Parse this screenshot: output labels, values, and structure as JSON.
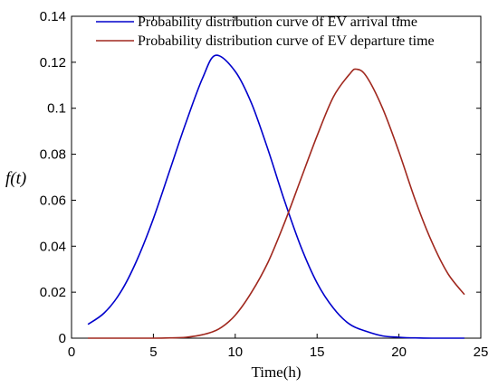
{
  "chart_data": {
    "type": "line",
    "title": "",
    "xlabel": "Time(h)",
    "ylabel": "f(t)",
    "xlim": [
      0,
      25
    ],
    "ylim": [
      0,
      0.14
    ],
    "xticks": [
      0,
      5,
      10,
      15,
      20,
      25
    ],
    "yticks": [
      0,
      0.02,
      0.04,
      0.06,
      0.08,
      0.1,
      0.12,
      0.14
    ],
    "xtick_labels": [
      "0",
      "5",
      "10",
      "15",
      "20",
      "25"
    ],
    "ytick_labels": [
      "0",
      "0.02",
      "0.04",
      "0.06",
      "0.08",
      "0.1",
      "0.12",
      "0.14"
    ],
    "grid": false,
    "legend_position": "top-right",
    "series": [
      {
        "name": "Probability distribution curve of EV arrival time",
        "color": "#0000cc",
        "x": [
          1,
          2,
          3,
          4,
          5,
          6,
          7,
          8,
          8.8,
          10,
          11,
          12,
          13,
          14,
          15,
          16,
          17,
          18,
          19,
          20,
          21,
          22,
          23,
          24
        ],
        "y": [
          0.006,
          0.011,
          0.02,
          0.034,
          0.052,
          0.073,
          0.094,
          0.113,
          0.123,
          0.116,
          0.102,
          0.082,
          0.06,
          0.04,
          0.024,
          0.013,
          0.006,
          0.003,
          0.001,
          0.0004,
          0.0001,
          0.0,
          0.0,
          0.0
        ]
      },
      {
        "name": "Probability distribution curve of EV departure time",
        "color": "#a0281e",
        "x": [
          1,
          2,
          3,
          4,
          5,
          6,
          7,
          8,
          9,
          10,
          11,
          12,
          13,
          14,
          15,
          16,
          17,
          17.4,
          18,
          19,
          20,
          21,
          22,
          23,
          24
        ],
        "y": [
          0.0,
          0.0,
          0.0,
          0.0,
          0.0,
          0.0001,
          0.0004,
          0.0015,
          0.004,
          0.01,
          0.02,
          0.033,
          0.05,
          0.069,
          0.088,
          0.105,
          0.115,
          0.117,
          0.114,
          0.1,
          0.081,
          0.06,
          0.042,
          0.028,
          0.019
        ]
      }
    ]
  }
}
